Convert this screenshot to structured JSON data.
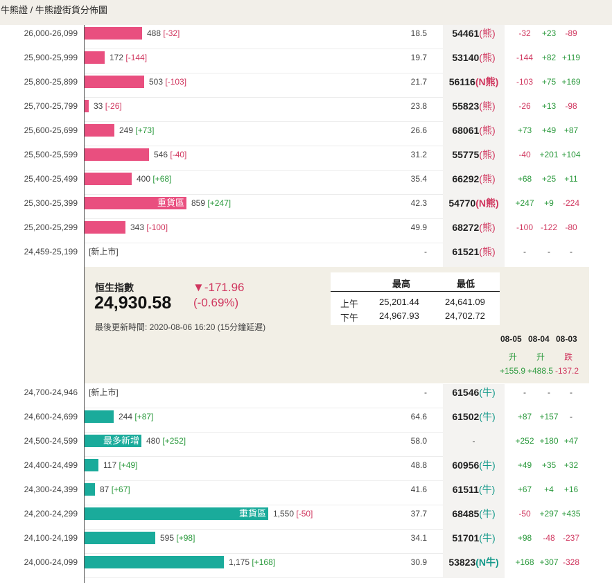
{
  "breadcrumb": "牛熊證 / 牛熊證街貨分佈圖",
  "marker_colors": {
    "bear": "#e94f7f",
    "bull": "#1aab9b"
  },
  "index": {
    "name": "恒生指數",
    "value": "24,930.58",
    "change": "▼-171.96",
    "change_pct": "(-0.69%)",
    "updated": "最後更新時間: 2020-08-06 16:20 (15分鐘延遲)",
    "hilo": {
      "col_high": "最高",
      "col_low": "最低",
      "am_label": "上午",
      "am_high": "25,201.44",
      "am_low": "24,641.09",
      "pm_label": "下午",
      "pm_high": "24,967.93",
      "pm_low": "24,702.72"
    },
    "history": [
      {
        "date": "08-05",
        "dir": "升",
        "chg": "+155.9"
      },
      {
        "date": "08-04",
        "dir": "升",
        "chg": "+488.5"
      },
      {
        "date": "08-03",
        "dir": "跌",
        "chg": "-137.2"
      }
    ]
  },
  "bear_rows": [
    {
      "range": "26,000-26,099",
      "vol": "488",
      "vol_chg": "[-32]",
      "vol_num": 488,
      "pct": "18.5",
      "code": "54461",
      "kind": "(熊)",
      "kclass": "bear",
      "d1": "-32",
      "d2": "+23",
      "d3": "-89"
    },
    {
      "range": "25,900-25,999",
      "vol": "172",
      "vol_chg": "[-144]",
      "vol_num": 172,
      "pct": "19.7",
      "code": "53140",
      "kind": "(熊)",
      "kclass": "bear",
      "d1": "-144",
      "d2": "+82",
      "d3": "+119"
    },
    {
      "range": "25,800-25,899",
      "vol": "503",
      "vol_chg": "[-103]",
      "vol_num": 503,
      "pct": "21.7",
      "code": "56116",
      "kind": "(N熊)",
      "kclass": "nbear",
      "d1": "-103",
      "d2": "+75",
      "d3": "+169"
    },
    {
      "range": "25,700-25,799",
      "vol": "33",
      "vol_chg": "[-26]",
      "vol_num": 33,
      "pct": "23.8",
      "code": "55823",
      "kind": "(熊)",
      "kclass": "bear",
      "d1": "-26",
      "d2": "+13",
      "d3": "-98"
    },
    {
      "range": "25,600-25,699",
      "vol": "249",
      "vol_chg": "[+73]",
      "vol_num": 249,
      "pct": "26.6",
      "code": "68061",
      "kind": "(熊)",
      "kclass": "bear",
      "d1": "+73",
      "d2": "+49",
      "d3": "+87"
    },
    {
      "range": "25,500-25,599",
      "vol": "546",
      "vol_chg": "[-40]",
      "vol_num": 546,
      "pct": "31.2",
      "code": "55775",
      "kind": "(熊)",
      "kclass": "bear",
      "d1": "-40",
      "d2": "+201",
      "d3": "+104"
    },
    {
      "range": "25,400-25,499",
      "vol": "400",
      "vol_chg": "[+68]",
      "vol_num": 400,
      "pct": "35.4",
      "code": "66292",
      "kind": "(熊)",
      "kclass": "bear",
      "d1": "+68",
      "d2": "+25",
      "d3": "+11"
    },
    {
      "range": "25,300-25,399",
      "vol": "859",
      "vol_chg": "[+247]",
      "vol_num": 859,
      "tag": "重貨區",
      "pct": "42.3",
      "code": "54770",
      "kind": "(N熊)",
      "kclass": "nbear",
      "d1": "+247",
      "d2": "+9",
      "d3": "-224"
    },
    {
      "range": "25,200-25,299",
      "vol": "343",
      "vol_chg": "[-100]",
      "vol_num": 343,
      "pct": "49.9",
      "code": "68272",
      "kind": "(熊)",
      "kclass": "bear",
      "d1": "-100",
      "d2": "-122",
      "d3": "-80"
    },
    {
      "range": "24,459-25,199",
      "newlist": "[新上市]",
      "pct": "-",
      "code": "61521",
      "kind": "(熊)",
      "kclass": "bear",
      "d1": "-",
      "d2": "-",
      "d3": "-"
    }
  ],
  "bull_rows": [
    {
      "range": "24,700-24,946",
      "newlist": "[新上市]",
      "pct": "-",
      "code": "61546",
      "kind": "(牛)",
      "kclass": "bull",
      "d1": "-",
      "d2": "-",
      "d3": "-"
    },
    {
      "range": "24,600-24,699",
      "vol": "244",
      "vol_chg": "[+87]",
      "vol_num": 244,
      "pct": "64.6",
      "code": "61502",
      "kind": "(牛)",
      "kclass": "bull",
      "d1": "+87",
      "d2": "+157",
      "d3": "-"
    },
    {
      "range": "24,500-24,599",
      "vol": "480",
      "vol_chg": "[+252]",
      "vol_num": 480,
      "tag": "最多新增",
      "pct": "58.0",
      "code": "-",
      "kind": "",
      "kclass": "",
      "d1": "+252",
      "d2": "+180",
      "d3": "+47"
    },
    {
      "range": "24,400-24,499",
      "vol": "117",
      "vol_chg": "[+49]",
      "vol_num": 117,
      "pct": "48.8",
      "code": "60956",
      "kind": "(牛)",
      "kclass": "bull",
      "d1": "+49",
      "d2": "+35",
      "d3": "+32"
    },
    {
      "range": "24,300-24,399",
      "vol": "87",
      "vol_chg": "[+67]",
      "vol_num": 87,
      "pct": "41.6",
      "code": "61511",
      "kind": "(牛)",
      "kclass": "bull",
      "d1": "+67",
      "d2": "+4",
      "d3": "+16"
    },
    {
      "range": "24,200-24,299",
      "vol": "1,550",
      "vol_chg": "[-50]",
      "vol_num": 1550,
      "tag": "重貨區",
      "pct": "37.7",
      "code": "68485",
      "kind": "(牛)",
      "kclass": "bull",
      "d1": "-50",
      "d2": "+297",
      "d3": "+435"
    },
    {
      "range": "24,100-24,199",
      "vol": "595",
      "vol_chg": "[+98]",
      "vol_num": 595,
      "pct": "34.1",
      "code": "51701",
      "kind": "(牛)",
      "kclass": "bull",
      "d1": "+98",
      "d2": "-48",
      "d3": "-237"
    },
    {
      "range": "24,000-24,099",
      "vol": "1,175",
      "vol_chg": "[+168]",
      "vol_num": 1175,
      "pct": "30.9",
      "code": "53823",
      "kind": "(N牛)",
      "kclass": "nbull",
      "d1": "+168",
      "d2": "+307",
      "d3": "-328"
    }
  ]
}
